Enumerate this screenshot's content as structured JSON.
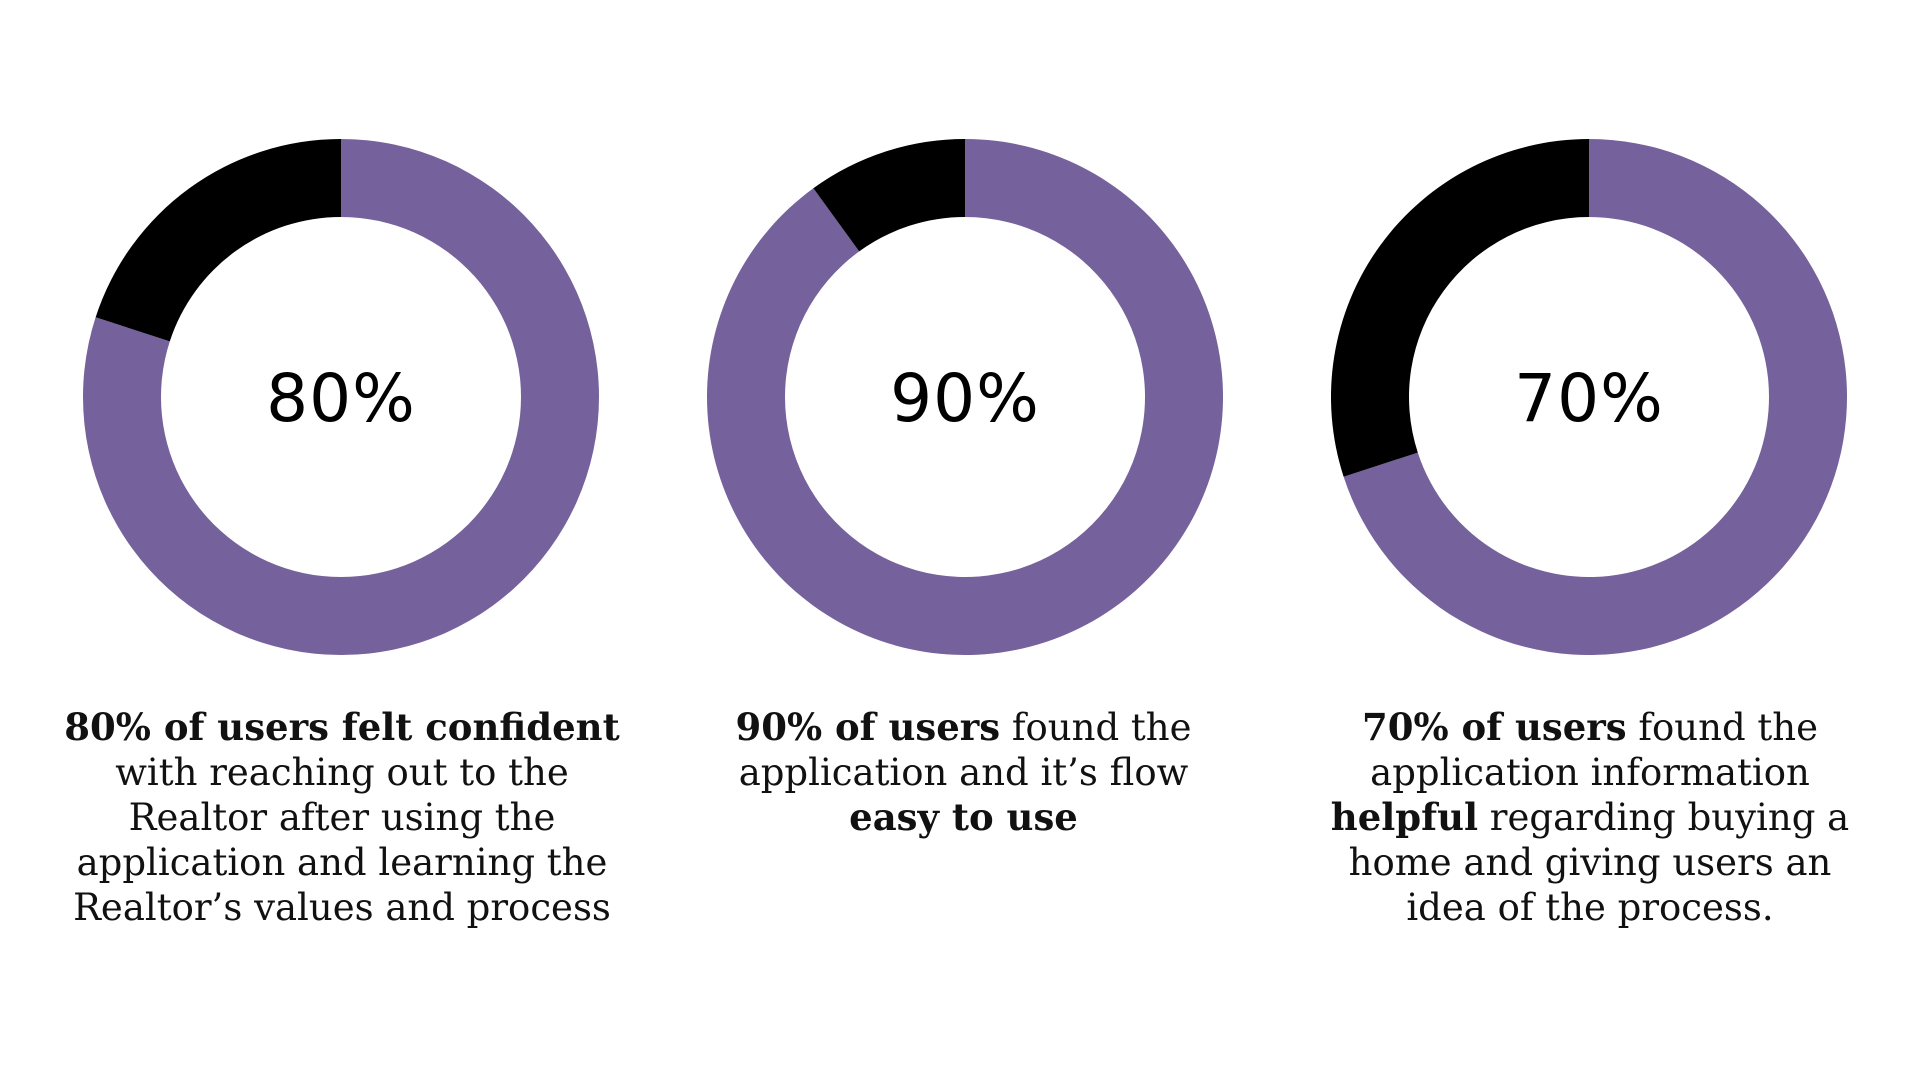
{
  "chart_data": [
    {
      "type": "pie",
      "donut": true,
      "values": [
        80,
        20
      ],
      "center_label": "80%",
      "colors": [
        "#75619b",
        "#000000"
      ],
      "caption": {
        "bold_lead": "80% of users felt confident",
        "text": " with reaching out to the Realtor after using the application and learning the Realtor’s values and process",
        "bold_tail": "",
        "end": ""
      }
    },
    {
      "type": "pie",
      "donut": true,
      "values": [
        90,
        10
      ],
      "center_label": "90%",
      "colors": [
        "#75619b",
        "#000000"
      ],
      "caption": {
        "bold_lead": "90% of users",
        "text": " found the application and it’s flow ",
        "bold_tail": "easy to use",
        "end": ""
      }
    },
    {
      "type": "pie",
      "donut": true,
      "values": [
        70,
        30
      ],
      "center_label": "70%",
      "colors": [
        "#75619b",
        "#000000"
      ],
      "caption": {
        "bold_lead": "70% of users",
        "text": " found the application information ",
        "bold_tail": "helpful",
        "end": " regarding buying a home and giving users an idea of the process."
      }
    }
  ]
}
